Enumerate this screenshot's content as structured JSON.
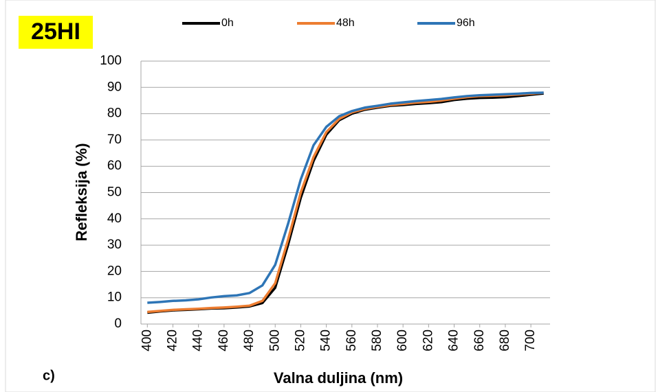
{
  "chart_data": {
    "type": "line",
    "title": "25HI",
    "annotation": "c)",
    "xlabel": "Valna duljina (nm)",
    "ylabel": "Refleksija (%)",
    "x": [
      400,
      410,
      420,
      430,
      440,
      450,
      460,
      470,
      480,
      490,
      500,
      510,
      520,
      530,
      540,
      550,
      560,
      570,
      580,
      590,
      600,
      610,
      620,
      630,
      640,
      650,
      660,
      670,
      680,
      690,
      700,
      710
    ],
    "series": [
      {
        "name": "0h",
        "color": "#000000",
        "values": [
          4.3,
          4.8,
          5.2,
          5.4,
          5.6,
          5.9,
          6.0,
          6.3,
          6.7,
          8.0,
          13.8,
          30,
          48,
          62,
          72,
          77.5,
          80,
          81.5,
          82.3,
          83,
          83.3,
          83.7,
          84,
          84.4,
          85.2,
          85.7,
          86,
          86.1,
          86.3,
          86.7,
          87.2,
          87.7
        ]
      },
      {
        "name": "48h",
        "color": "#ed7d31",
        "values": [
          4.6,
          5.0,
          5.4,
          5.6,
          5.8,
          6.1,
          6.3,
          6.6,
          7.0,
          8.8,
          15.5,
          32,
          50,
          63.5,
          73,
          78,
          80.5,
          81.8,
          82.6,
          83.3,
          83.7,
          84.2,
          84.5,
          85,
          85.7,
          86.3,
          86.7,
          86.8,
          87,
          87.3,
          87.6,
          88
        ]
      },
      {
        "name": "96h",
        "color": "#2e75b6",
        "values": [
          8.1,
          8.4,
          8.8,
          9.0,
          9.4,
          10.1,
          10.6,
          10.9,
          11.8,
          14.7,
          22.5,
          38,
          55,
          68,
          75,
          79,
          81,
          82.3,
          83,
          83.8,
          84.3,
          84.8,
          85.2,
          85.6,
          86.2,
          86.7,
          87,
          87.2,
          87.4,
          87.6,
          87.9,
          88
        ]
      }
    ],
    "xlim": [
      395,
      715
    ],
    "xticks": [
      400,
      420,
      440,
      460,
      480,
      500,
      520,
      540,
      560,
      580,
      600,
      620,
      640,
      660,
      680,
      700
    ],
    "ylim": [
      0,
      100
    ],
    "yticks": [
      0,
      10,
      20,
      30,
      40,
      50,
      60,
      70,
      80,
      90,
      100
    ],
    "grid": true,
    "legend": "top"
  }
}
